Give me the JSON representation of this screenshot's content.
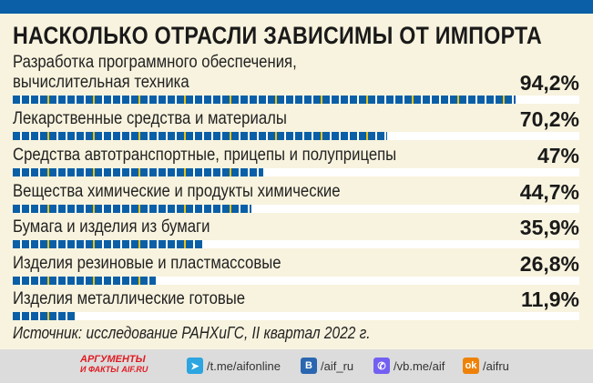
{
  "chart_data": {
    "type": "bar",
    "title": "НАСКОЛЬКО ОТРАСЛИ ЗАВИСИМЫ ОТ ИМПОРТА",
    "categories": [
      [
        "Разработка программного обеспечения,",
        "вычислительная техника"
      ],
      [
        "Лекарственные средства и материалы"
      ],
      [
        "Средства автотранспортные, прицепы и полуприцепы"
      ],
      [
        "Вещества химические и продукты химические"
      ],
      [
        "Бумага и изделия из бумаги"
      ],
      [
        "Изделия резиновые и пластмассовые"
      ],
      [
        "Изделия металлические готовые"
      ]
    ],
    "values": [
      94.2,
      70.2,
      47,
      44.7,
      35.9,
      26.8,
      11.9
    ],
    "value_labels": [
      "94,2%",
      "70,2%",
      "47%",
      "44,7%",
      "35,9%",
      "26,8%",
      "11,9%"
    ],
    "orientation": "horizontal",
    "grid": false
  },
  "source": "Источник: исследование РАНХиГС, II квартал 2022 г.",
  "colors": {
    "bar": "#0a5fa6",
    "accent": "#e8c41a",
    "background": "#f8f3de"
  },
  "footer": {
    "logo": [
      "АРГУМЕНТЫ",
      "И ФАКТЫ",
      "AIF.RU"
    ],
    "links": [
      {
        "icon": "telegram-icon",
        "text": "/t.me/aifonline",
        "color": "#2ca5e0"
      },
      {
        "icon": "vk-icon",
        "text": "/aif_ru",
        "color": "#2a67b0"
      },
      {
        "icon": "viber-icon",
        "text": "/vb.me/aif",
        "color": "#7360f2"
      },
      {
        "icon": "odnoklassniki-icon",
        "text": "/aifru",
        "color": "#ee8208"
      }
    ]
  }
}
